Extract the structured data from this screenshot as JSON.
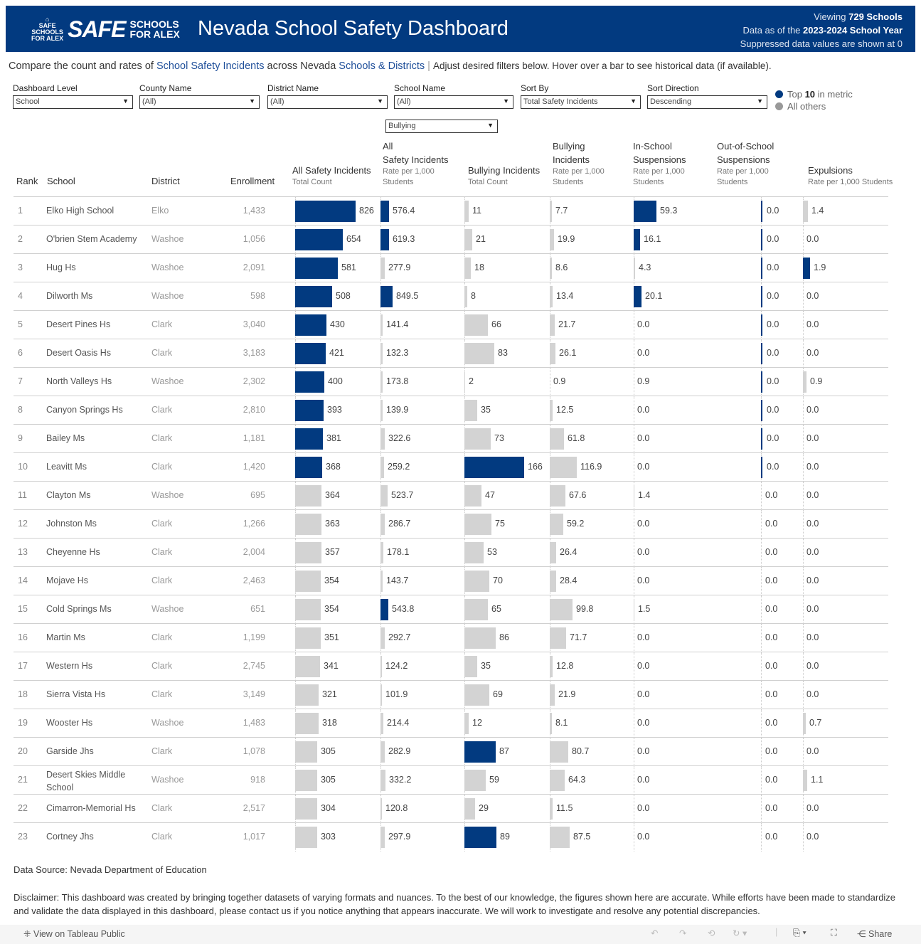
{
  "banner": {
    "logo_text": "SAFE SCHOOLS FOR ALEX",
    "title": "Nevada School Safety Dashboard",
    "viewing_prefix": "Viewing ",
    "viewing_count": "729 Schools",
    "data_prefix": "Data as of the ",
    "data_year": "2023-2024 School Year",
    "suppressed": "Suppressed data values are shown at 0",
    "color": "#023a80"
  },
  "intro": {
    "p1": "Compare the count and rates of ",
    "l1": "School Safety Incidents",
    "p2": " across Nevada ",
    "l2": "Schools & Districts",
    "sep": "|",
    "rest": "Adjust desired filters below. Hover over a bar to see historical data (if available)."
  },
  "filters": [
    {
      "label": "Dashboard Level",
      "value": "School"
    },
    {
      "label": "County Name",
      "value": "(All)"
    },
    {
      "label": "District Name",
      "value": "(All)"
    },
    {
      "label": "School Name",
      "value": "(All)"
    },
    {
      "label": "Sort By",
      "value": "Total Safety Incidents"
    },
    {
      "label": "Sort Direction",
      "value": "Descending"
    }
  ],
  "incident_type": {
    "value": "Bullying"
  },
  "legend": {
    "top_prefix": "Top ",
    "top_n": "10",
    "top_suffix": " in metric",
    "others": "All others",
    "top_color": "#023a80",
    "others_color": "#999999"
  },
  "headers": {
    "rank": "Rank",
    "school": "School",
    "district": "District",
    "enrollment": "Enrollment",
    "all_count": "All Safety Incidents",
    "all_count_sub": "Total Count",
    "all_rate_1": "All",
    "all_rate_2": "Safety Incidents",
    "all_rate_sub1": "Rate per 1,000",
    "all_rate_sub2": "Students",
    "bull_count": "Bullying Incidents",
    "bull_count_sub": "Total Count",
    "bull_rate_1": "Bullying",
    "bull_rate_2": "Incidents",
    "bull_rate_sub1": "Rate per 1,000",
    "bull_rate_sub2": "Students",
    "iss_1": "In-School",
    "iss_2": "Suspensions",
    "iss_sub1": "Rate per 1,000",
    "iss_sub2": "Students",
    "oss_1": "Out-of-School",
    "oss_2": "Suspensions",
    "oss_sub1": "Rate per 1,000",
    "oss_sub2": "Students",
    "exp": "Expulsions",
    "exp_sub": "Rate per 1,000 Students"
  },
  "colors": {
    "highlight": "#023a80",
    "other": "#d3d3d3"
  },
  "rows": [
    {
      "rank": "1",
      "school": "Elko High School",
      "district": "Elko",
      "enrollment": "1,433",
      "all_count": 826,
      "all_rate": 576.4,
      "bull_count": 11,
      "bull_rate": 7.7,
      "iss": 59.3,
      "oss": 0.0,
      "exp": 1.4,
      "top": [
        "all_count",
        "all_rate",
        "iss",
        "oss"
      ]
    },
    {
      "rank": "2",
      "school": "O'brien Stem Academy",
      "district": "Washoe",
      "enrollment": "1,056",
      "all_count": 654,
      "all_rate": 619.3,
      "bull_count": 21,
      "bull_rate": 19.9,
      "iss": 16.1,
      "oss": 0.0,
      "exp": 0.0,
      "top": [
        "all_count",
        "all_rate",
        "iss",
        "oss"
      ]
    },
    {
      "rank": "3",
      "school": "Hug Hs",
      "district": "Washoe",
      "enrollment": "2,091",
      "all_count": 581,
      "all_rate": 277.9,
      "bull_count": 18,
      "bull_rate": 8.6,
      "iss": 4.3,
      "oss": 0.0,
      "exp": 1.9,
      "top": [
        "all_count",
        "oss",
        "exp"
      ]
    },
    {
      "rank": "4",
      "school": "Dilworth Ms",
      "district": "Washoe",
      "enrollment": "598",
      "all_count": 508,
      "all_rate": 849.5,
      "bull_count": 8,
      "bull_rate": 13.4,
      "iss": 20.1,
      "oss": 0.0,
      "exp": 0.0,
      "top": [
        "all_count",
        "all_rate",
        "iss",
        "oss"
      ]
    },
    {
      "rank": "5",
      "school": "Desert Pines Hs",
      "district": "Clark",
      "enrollment": "3,040",
      "all_count": 430,
      "all_rate": 141.4,
      "bull_count": 66,
      "bull_rate": 21.7,
      "iss": 0.0,
      "oss": 0.0,
      "exp": 0.0,
      "top": [
        "all_count",
        "oss"
      ]
    },
    {
      "rank": "6",
      "school": "Desert Oasis Hs",
      "district": "Clark",
      "enrollment": "3,183",
      "all_count": 421,
      "all_rate": 132.3,
      "bull_count": 83,
      "bull_rate": 26.1,
      "iss": 0.0,
      "oss": 0.0,
      "exp": 0.0,
      "top": [
        "all_count",
        "oss"
      ]
    },
    {
      "rank": "7",
      "school": "North Valleys Hs",
      "district": "Washoe",
      "enrollment": "2,302",
      "all_count": 400,
      "all_rate": 173.8,
      "bull_count": 2,
      "bull_rate": 0.9,
      "iss": 0.9,
      "oss": 0.0,
      "exp": 0.9,
      "top": [
        "all_count",
        "oss"
      ]
    },
    {
      "rank": "8",
      "school": "Canyon Springs Hs",
      "district": "Clark",
      "enrollment": "2,810",
      "all_count": 393,
      "all_rate": 139.9,
      "bull_count": 35,
      "bull_rate": 12.5,
      "iss": 0.0,
      "oss": 0.0,
      "exp": 0.0,
      "top": [
        "all_count",
        "oss"
      ]
    },
    {
      "rank": "9",
      "school": "Bailey Ms",
      "district": "Clark",
      "enrollment": "1,181",
      "all_count": 381,
      "all_rate": 322.6,
      "bull_count": 73,
      "bull_rate": 61.8,
      "iss": 0.0,
      "oss": 0.0,
      "exp": 0.0,
      "top": [
        "all_count",
        "oss"
      ]
    },
    {
      "rank": "10",
      "school": "Leavitt Ms",
      "district": "Clark",
      "enrollment": "1,420",
      "all_count": 368,
      "all_rate": 259.2,
      "bull_count": 166,
      "bull_rate": 116.9,
      "iss": 0.0,
      "oss": 0.0,
      "exp": 0.0,
      "top": [
        "all_count",
        "bull_count",
        "oss"
      ]
    },
    {
      "rank": "11",
      "school": "Clayton Ms",
      "district": "Washoe",
      "enrollment": "695",
      "all_count": 364,
      "all_rate": 523.7,
      "bull_count": 47,
      "bull_rate": 67.6,
      "iss": 1.4,
      "oss": 0.0,
      "exp": 0.0,
      "top": []
    },
    {
      "rank": "12",
      "school": "Johnston Ms",
      "district": "Clark",
      "enrollment": "1,266",
      "all_count": 363,
      "all_rate": 286.7,
      "bull_count": 75,
      "bull_rate": 59.2,
      "iss": 0.0,
      "oss": 0.0,
      "exp": 0.0,
      "top": []
    },
    {
      "rank": "13",
      "school": "Cheyenne Hs",
      "district": "Clark",
      "enrollment": "2,004",
      "all_count": 357,
      "all_rate": 178.1,
      "bull_count": 53,
      "bull_rate": 26.4,
      "iss": 0.0,
      "oss": 0.0,
      "exp": 0.0,
      "top": []
    },
    {
      "rank": "14",
      "school": "Mojave Hs",
      "district": "Clark",
      "enrollment": "2,463",
      "all_count": 354,
      "all_rate": 143.7,
      "bull_count": 70,
      "bull_rate": 28.4,
      "iss": 0.0,
      "oss": 0.0,
      "exp": 0.0,
      "top": []
    },
    {
      "rank": "15",
      "school": "Cold Springs Ms",
      "district": "Washoe",
      "enrollment": "651",
      "all_count": 354,
      "all_rate": 543.8,
      "bull_count": 65,
      "bull_rate": 99.8,
      "iss": 1.5,
      "oss": 0.0,
      "exp": 0.0,
      "top": [
        "all_rate"
      ]
    },
    {
      "rank": "16",
      "school": "Martin Ms",
      "district": "Clark",
      "enrollment": "1,199",
      "all_count": 351,
      "all_rate": 292.7,
      "bull_count": 86,
      "bull_rate": 71.7,
      "iss": 0.0,
      "oss": 0.0,
      "exp": 0.0,
      "top": []
    },
    {
      "rank": "17",
      "school": "Western Hs",
      "district": "Clark",
      "enrollment": "2,745",
      "all_count": 341,
      "all_rate": 124.2,
      "bull_count": 35,
      "bull_rate": 12.8,
      "iss": 0.0,
      "oss": 0.0,
      "exp": 0.0,
      "top": []
    },
    {
      "rank": "18",
      "school": "Sierra Vista Hs",
      "district": "Clark",
      "enrollment": "3,149",
      "all_count": 321,
      "all_rate": 101.9,
      "bull_count": 69,
      "bull_rate": 21.9,
      "iss": 0.0,
      "oss": 0.0,
      "exp": 0.0,
      "top": []
    },
    {
      "rank": "19",
      "school": "Wooster Hs",
      "district": "Washoe",
      "enrollment": "1,483",
      "all_count": 318,
      "all_rate": 214.4,
      "bull_count": 12,
      "bull_rate": 8.1,
      "iss": 0.0,
      "oss": 0.0,
      "exp": 0.7,
      "top": []
    },
    {
      "rank": "20",
      "school": "Garside Jhs",
      "district": "Clark",
      "enrollment": "1,078",
      "all_count": 305,
      "all_rate": 282.9,
      "bull_count": 87,
      "bull_rate": 80.7,
      "iss": 0.0,
      "oss": 0.0,
      "exp": 0.0,
      "top": [
        "bull_count"
      ]
    },
    {
      "rank": "21",
      "school": "Desert Skies Middle School",
      "district": "Washoe",
      "enrollment": "918",
      "all_count": 305,
      "all_rate": 332.2,
      "bull_count": 59,
      "bull_rate": 64.3,
      "iss": 0.0,
      "oss": 0.0,
      "exp": 1.1,
      "top": []
    },
    {
      "rank": "22",
      "school": "Cimarron-Memorial Hs",
      "district": "Clark",
      "enrollment": "2,517",
      "all_count": 304,
      "all_rate": 120.8,
      "bull_count": 29,
      "bull_rate": 11.5,
      "iss": 0.0,
      "oss": 0.0,
      "exp": 0.0,
      "top": []
    },
    {
      "rank": "23",
      "school": "Cortney Jhs",
      "district": "Clark",
      "enrollment": "1,017",
      "all_count": 303,
      "all_rate": 297.9,
      "bull_count": 89,
      "bull_rate": 87.5,
      "iss": 0.0,
      "oss": 0.0,
      "exp": 0.0,
      "top": [
        "bull_count"
      ]
    }
  ],
  "footer": {
    "source": "Data Source: Nevada Department of Education",
    "disclaimer": "Disclaimer: This dashboard was created by bringing together datasets of varying formats and nuances. To the best of our knowledge, the figures shown here are accurate. While efforts have been made to standardize and validate the data displayed in this dashboard, please contact us if you notice anything that appears inaccurate. We will work to investigate and resolve any potential discrepancies."
  },
  "toolbar": {
    "view_on": "View on Tableau Public",
    "share": "Share"
  }
}
